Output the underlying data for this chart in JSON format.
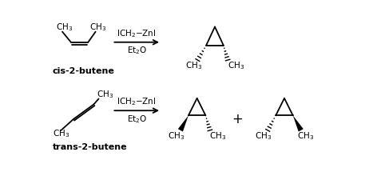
{
  "background": "#ffffff",
  "text_color": "#000000",
  "fig_width": 4.67,
  "fig_height": 2.15,
  "dpi": 100,
  "fs": 7.5,
  "fs_s": 5.5,
  "fs_bold": 8.0,
  "lw": 1.3
}
